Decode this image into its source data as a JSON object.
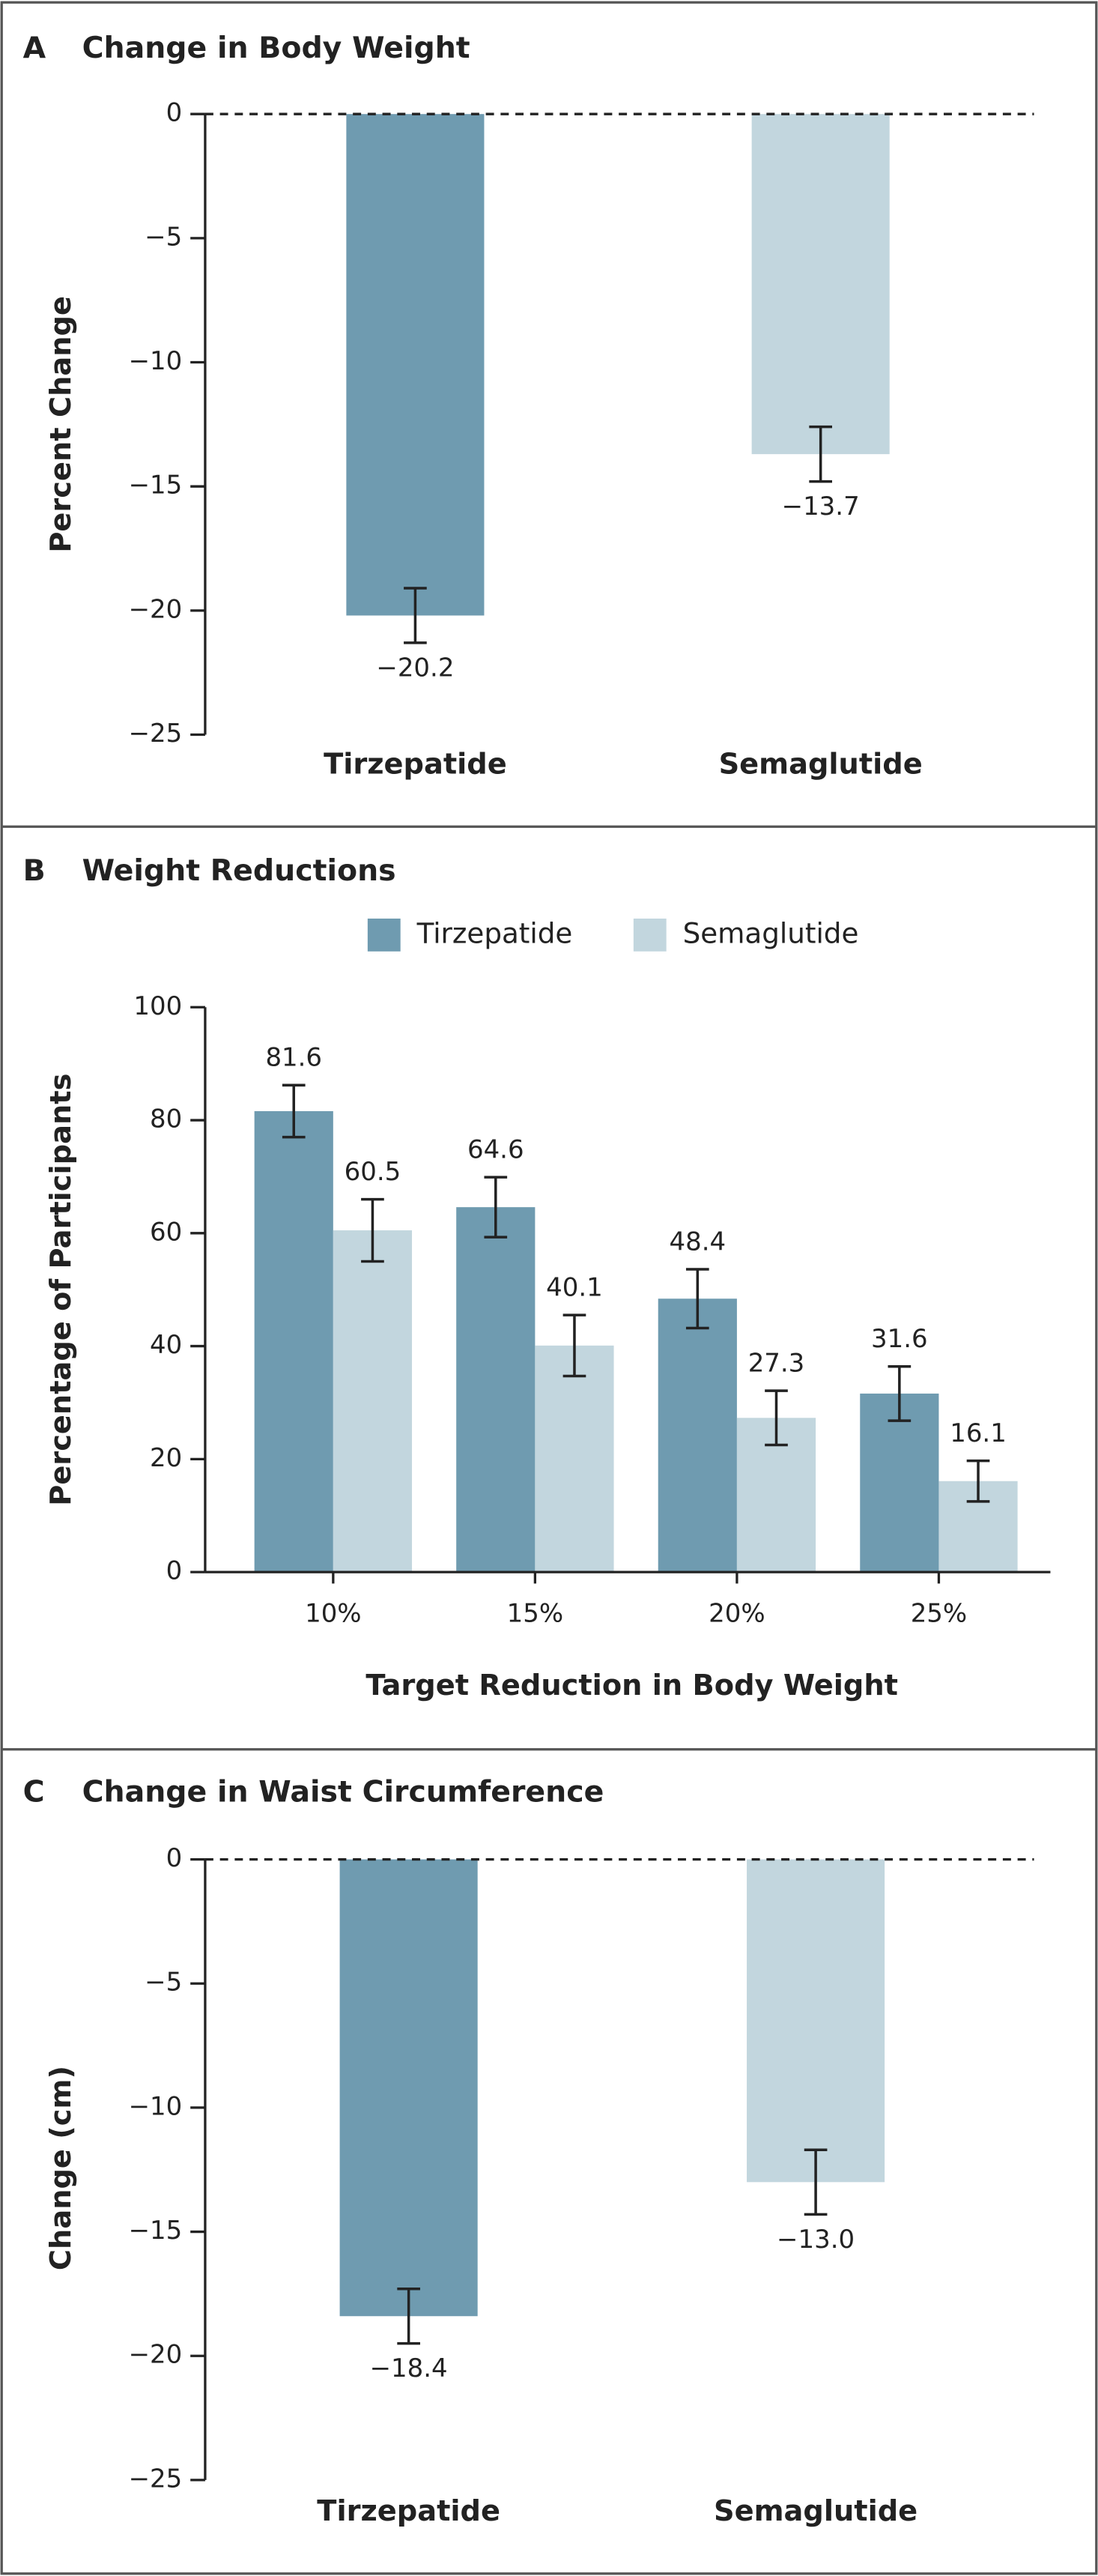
{
  "chart_data": [
    {
      "type": "bar",
      "panel": "A",
      "title": "Change in Body Weight",
      "y_label": "Percent Change",
      "categories": [
        "Tirzepatide",
        "Semaglutide"
      ],
      "values": [
        -20.2,
        -13.7
      ],
      "errors": [
        1.1,
        1.1
      ],
      "value_labels": [
        "−20.2",
        "−13.7"
      ],
      "colors": [
        "#6f9bb0",
        "#c2d6de"
      ],
      "ylim": [
        -25,
        0
      ],
      "yticks": [
        0,
        {
          "value": -5,
          "label": "−5"
        },
        {
          "value": -10,
          "label": "−10"
        },
        {
          "value": -15,
          "label": "−15"
        },
        {
          "value": -20,
          "label": "−20"
        },
        {
          "value": -25,
          "label": "−25"
        }
      ],
      "zero_line": "dashed"
    },
    {
      "type": "grouped_bar",
      "panel": "B",
      "title": "Weight Reductions",
      "y_label": "Percentage of Participants",
      "x_label": "Target Reduction in Body Weight",
      "categories": [
        "10%",
        "15%",
        "20%",
        "25%"
      ],
      "series": [
        {
          "name": "Tirzepatide",
          "color": "#6f9bb0",
          "values": [
            81.6,
            64.6,
            48.4,
            31.6
          ],
          "errors": [
            4.6,
            5.3,
            5.2,
            4.8
          ]
        },
        {
          "name": "Semaglutide",
          "color": "#c2d6de",
          "values": [
            60.5,
            40.1,
            27.3,
            16.1
          ],
          "errors": [
            5.5,
            5.4,
            4.8,
            3.6
          ]
        }
      ],
      "ylim": [
        0,
        100
      ],
      "yticks": [
        0,
        20,
        40,
        60,
        80,
        100
      ],
      "legend": "top"
    },
    {
      "type": "bar",
      "panel": "C",
      "title": "Change in Waist Circumference",
      "y_label": "Change (cm)",
      "categories": [
        "Tirzepatide",
        "Semaglutide"
      ],
      "values": [
        -18.4,
        -13.0
      ],
      "errors": [
        1.1,
        1.3
      ],
      "value_labels": [
        "−18.4",
        "−13.0"
      ],
      "colors": [
        "#6f9bb0",
        "#c2d6de"
      ],
      "ylim": [
        -25,
        0
      ],
      "yticks": [
        0,
        {
          "value": -5,
          "label": "−5"
        },
        {
          "value": -10,
          "label": "−10"
        },
        {
          "value": -15,
          "label": "−15"
        },
        {
          "value": -20,
          "label": "−20"
        },
        {
          "value": -25,
          "label": "−25"
        }
      ],
      "zero_line": "dashed"
    }
  ]
}
